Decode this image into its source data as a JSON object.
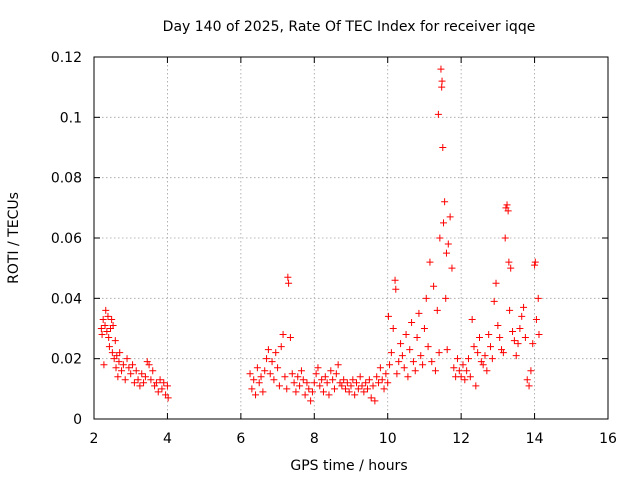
{
  "chart_data": {
    "type": "scatter",
    "title": "Day 140 of 2025, Rate Of TEC Index for receiver iqqe",
    "xlabel": "GPS time / hours",
    "ylabel": "ROTI / TECUs",
    "xlim": [
      2,
      16
    ],
    "ylim": [
      0,
      0.12
    ],
    "x_ticks": [
      2,
      4,
      6,
      8,
      10,
      12,
      14,
      16
    ],
    "y_ticks": [
      0,
      0.02,
      0.04,
      0.06,
      0.08,
      0.1,
      0.12
    ],
    "x_tick_labels": [
      "2",
      "4",
      "6",
      "8",
      "10",
      "12",
      "14",
      "16"
    ],
    "y_tick_labels": [
      "0",
      "0.02",
      "0.04",
      "0.06",
      "0.08",
      "0.1",
      "0.12"
    ],
    "grid": true,
    "marker": "plus",
    "color": "#ff0000",
    "series": [
      {
        "points": [
          [
            2.2,
            0.03
          ],
          [
            2.22,
            0.028
          ],
          [
            2.25,
            0.033
          ],
          [
            2.27,
            0.018
          ],
          [
            2.3,
            0.031
          ],
          [
            2.32,
            0.036
          ],
          [
            2.35,
            0.029
          ],
          [
            2.38,
            0.034
          ],
          [
            2.4,
            0.027
          ],
          [
            2.42,
            0.024
          ],
          [
            2.45,
            0.03
          ],
          [
            2.48,
            0.033
          ],
          [
            2.5,
            0.022
          ],
          [
            2.52,
            0.031
          ],
          [
            2.55,
            0.02
          ],
          [
            2.58,
            0.026
          ],
          [
            2.6,
            0.017
          ],
          [
            2.62,
            0.021
          ],
          [
            2.65,
            0.014
          ],
          [
            2.68,
            0.019
          ],
          [
            2.7,
            0.022
          ],
          [
            2.75,
            0.016
          ],
          [
            2.8,
            0.018
          ],
          [
            2.85,
            0.013
          ],
          [
            2.9,
            0.02
          ],
          [
            2.95,
            0.017
          ],
          [
            3.0,
            0.015
          ],
          [
            3.05,
            0.018
          ],
          [
            3.1,
            0.012
          ],
          [
            3.15,
            0.016
          ],
          [
            3.2,
            0.013
          ],
          [
            3.25,
            0.011
          ],
          [
            3.3,
            0.015
          ],
          [
            3.35,
            0.012
          ],
          [
            3.4,
            0.014
          ],
          [
            3.45,
            0.019
          ],
          [
            3.5,
            0.018
          ],
          [
            3.55,
            0.013
          ],
          [
            3.6,
            0.016
          ],
          [
            3.65,
            0.011
          ],
          [
            3.7,
            0.012
          ],
          [
            3.75,
            0.009
          ],
          [
            3.8,
            0.013
          ],
          [
            3.85,
            0.01
          ],
          [
            3.9,
            0.012
          ],
          [
            3.95,
            0.008
          ],
          [
            4.0,
            0.011
          ],
          [
            4.02,
            0.007
          ],
          [
            6.25,
            0.015
          ],
          [
            6.3,
            0.01
          ],
          [
            6.35,
            0.013
          ],
          [
            6.4,
            0.008
          ],
          [
            6.45,
            0.017
          ],
          [
            6.5,
            0.012
          ],
          [
            6.55,
            0.014
          ],
          [
            6.6,
            0.009
          ],
          [
            6.65,
            0.016
          ],
          [
            6.7,
            0.02
          ],
          [
            6.75,
            0.023
          ],
          [
            6.8,
            0.015
          ],
          [
            6.85,
            0.019
          ],
          [
            6.9,
            0.013
          ],
          [
            6.95,
            0.022
          ],
          [
            7.0,
            0.017
          ],
          [
            7.05,
            0.011
          ],
          [
            7.1,
            0.024
          ],
          [
            7.15,
            0.028
          ],
          [
            7.2,
            0.014
          ],
          [
            7.25,
            0.01
          ],
          [
            7.28,
            0.047
          ],
          [
            7.3,
            0.045
          ],
          [
            7.35,
            0.027
          ],
          [
            7.4,
            0.015
          ],
          [
            7.45,
            0.012
          ],
          [
            7.5,
            0.009
          ],
          [
            7.55,
            0.014
          ],
          [
            7.6,
            0.011
          ],
          [
            7.65,
            0.016
          ],
          [
            7.7,
            0.013
          ],
          [
            7.75,
            0.008
          ],
          [
            7.8,
            0.012
          ],
          [
            7.85,
            0.01
          ],
          [
            7.9,
            0.006
          ],
          [
            7.95,
            0.009
          ],
          [
            8.0,
            0.012
          ],
          [
            8.05,
            0.015
          ],
          [
            8.1,
            0.017
          ],
          [
            8.15,
            0.011
          ],
          [
            8.2,
            0.013
          ],
          [
            8.25,
            0.009
          ],
          [
            8.3,
            0.014
          ],
          [
            8.35,
            0.012
          ],
          [
            8.4,
            0.008
          ],
          [
            8.45,
            0.016
          ],
          [
            8.5,
            0.013
          ],
          [
            8.55,
            0.01
          ],
          [
            8.6,
            0.015
          ],
          [
            8.65,
            0.018
          ],
          [
            8.7,
            0.012
          ],
          [
            8.75,
            0.011
          ],
          [
            8.8,
            0.013
          ],
          [
            8.85,
            0.01
          ],
          [
            8.9,
            0.012
          ],
          [
            8.95,
            0.009
          ],
          [
            9.0,
            0.011
          ],
          [
            9.05,
            0.013
          ],
          [
            9.1,
            0.008
          ],
          [
            9.15,
            0.012
          ],
          [
            9.2,
            0.01
          ],
          [
            9.25,
            0.014
          ],
          [
            9.3,
            0.011
          ],
          [
            9.35,
            0.009
          ],
          [
            9.4,
            0.012
          ],
          [
            9.45,
            0.01
          ],
          [
            9.5,
            0.013
          ],
          [
            9.55,
            0.007
          ],
          [
            9.6,
            0.011
          ],
          [
            9.65,
            0.006
          ],
          [
            9.7,
            0.014
          ],
          [
            9.75,
            0.012
          ],
          [
            9.8,
            0.017
          ],
          [
            9.85,
            0.013
          ],
          [
            9.9,
            0.01
          ],
          [
            9.95,
            0.015
          ],
          [
            10.0,
            0.012
          ],
          [
            10.02,
            0.034
          ],
          [
            10.05,
            0.018
          ],
          [
            10.1,
            0.022
          ],
          [
            10.15,
            0.03
          ],
          [
            10.2,
            0.046
          ],
          [
            10.22,
            0.043
          ],
          [
            10.25,
            0.015
          ],
          [
            10.3,
            0.019
          ],
          [
            10.35,
            0.025
          ],
          [
            10.4,
            0.021
          ],
          [
            10.45,
            0.017
          ],
          [
            10.5,
            0.028
          ],
          [
            10.55,
            0.014
          ],
          [
            10.6,
            0.023
          ],
          [
            10.65,
            0.032
          ],
          [
            10.7,
            0.019
          ],
          [
            10.75,
            0.016
          ],
          [
            10.8,
            0.027
          ],
          [
            10.85,
            0.035
          ],
          [
            10.9,
            0.021
          ],
          [
            10.95,
            0.018
          ],
          [
            11.0,
            0.03
          ],
          [
            11.05,
            0.04
          ],
          [
            11.1,
            0.024
          ],
          [
            11.15,
            0.052
          ],
          [
            11.2,
            0.019
          ],
          [
            11.25,
            0.044
          ],
          [
            11.3,
            0.016
          ],
          [
            11.35,
            0.036
          ],
          [
            11.38,
            0.101
          ],
          [
            11.4,
            0.022
          ],
          [
            11.42,
            0.06
          ],
          [
            11.45,
            0.116
          ],
          [
            11.47,
            0.11
          ],
          [
            11.48,
            0.112
          ],
          [
            11.5,
            0.09
          ],
          [
            11.52,
            0.065
          ],
          [
            11.55,
            0.072
          ],
          [
            11.58,
            0.04
          ],
          [
            11.6,
            0.055
          ],
          [
            11.62,
            0.023
          ],
          [
            11.65,
            0.058
          ],
          [
            11.7,
            0.067
          ],
          [
            11.75,
            0.05
          ],
          [
            11.8,
            0.017
          ],
          [
            11.85,
            0.014
          ],
          [
            11.9,
            0.02
          ],
          [
            11.95,
            0.016
          ],
          [
            12.0,
            0.014
          ],
          [
            12.05,
            0.018
          ],
          [
            12.1,
            0.013
          ],
          [
            12.15,
            0.016
          ],
          [
            12.2,
            0.02
          ],
          [
            12.25,
            0.014
          ],
          [
            12.3,
            0.033
          ],
          [
            12.35,
            0.024
          ],
          [
            12.4,
            0.011
          ],
          [
            12.45,
            0.022
          ],
          [
            12.5,
            0.027
          ],
          [
            12.55,
            0.019
          ],
          [
            12.6,
            0.018
          ],
          [
            12.65,
            0.021
          ],
          [
            12.7,
            0.016
          ],
          [
            12.75,
            0.028
          ],
          [
            12.8,
            0.024
          ],
          [
            12.85,
            0.02
          ],
          [
            12.9,
            0.039
          ],
          [
            12.95,
            0.045
          ],
          [
            13.0,
            0.031
          ],
          [
            13.05,
            0.027
          ],
          [
            13.1,
            0.023
          ],
          [
            13.15,
            0.022
          ],
          [
            13.2,
            0.06
          ],
          [
            13.22,
            0.07
          ],
          [
            13.25,
            0.071
          ],
          [
            13.28,
            0.069
          ],
          [
            13.3,
            0.052
          ],
          [
            13.32,
            0.036
          ],
          [
            13.35,
            0.05
          ],
          [
            13.4,
            0.029
          ],
          [
            13.45,
            0.026
          ],
          [
            13.5,
            0.021
          ],
          [
            13.55,
            0.025
          ],
          [
            13.6,
            0.03
          ],
          [
            13.65,
            0.034
          ],
          [
            13.7,
            0.037
          ],
          [
            13.75,
            0.027
          ],
          [
            13.8,
            0.013
          ],
          [
            13.85,
            0.011
          ],
          [
            13.9,
            0.016
          ],
          [
            13.95,
            0.025
          ],
          [
            14.0,
            0.051
          ],
          [
            14.02,
            0.052
          ],
          [
            14.05,
            0.033
          ],
          [
            14.1,
            0.04
          ],
          [
            14.12,
            0.028
          ]
        ]
      }
    ]
  }
}
